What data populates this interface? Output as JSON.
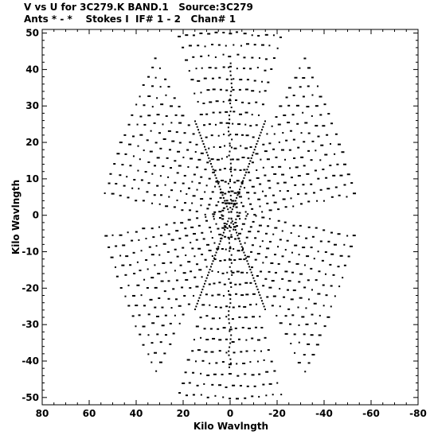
{
  "header": {
    "line1": "V vs U for 3C279.K BAND.1   Source:3C279",
    "line2": "Ants * - *    Stokes I  IF# 1 - 2   Chan# 1"
  },
  "chart_data": {
    "type": "scatter",
    "xlabel": "Kilo Wavlngth",
    "ylabel": "Kilo Wavlngth",
    "xlim": [
      80,
      -80
    ],
    "ylim": [
      -52,
      51
    ],
    "x_ticks": [
      80,
      60,
      40,
      20,
      0,
      -20,
      -40,
      -60,
      -80
    ],
    "y_ticks": [
      50,
      40,
      30,
      20,
      10,
      0,
      -10,
      -20,
      -30,
      -40,
      -50
    ],
    "grid": false,
    "marker_color": "#000000",
    "pattern": "six-armed uv-coverage (hexagonal star), points symmetric about origin",
    "arms": [
      {
        "angle_deg": 90,
        "length": 50
      },
      {
        "angle_deg": 30,
        "length": 50
      },
      {
        "angle_deg": -30,
        "length": 50
      },
      {
        "angle_deg": -90,
        "length": 50
      },
      {
        "angle_deg": 150,
        "length": 50
      },
      {
        "angle_deg": 210,
        "length": 50
      }
    ],
    "radial_spokes": [
      {
        "angle_deg": 60,
        "length": 30
      },
      {
        "angle_deg": 120,
        "length": 30
      },
      {
        "angle_deg": 240,
        "length": 30
      },
      {
        "angle_deg": 300,
        "length": 30
      }
    ],
    "axis_spokes": [
      {
        "angle_deg": 90,
        "length": 42
      },
      {
        "angle_deg": 270,
        "length": 42
      }
    ]
  }
}
